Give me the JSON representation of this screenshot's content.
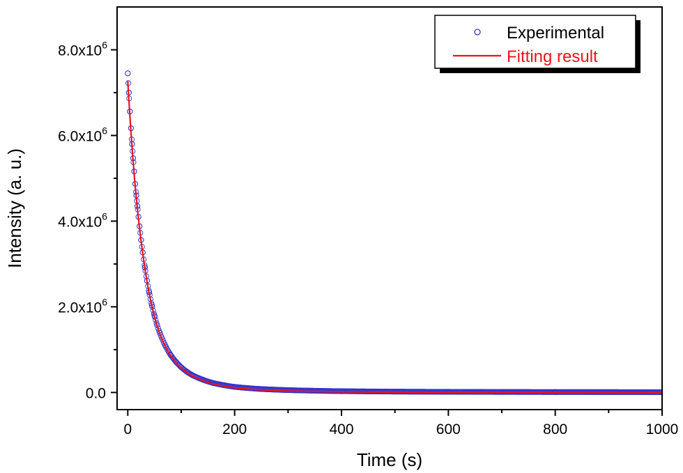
{
  "chart_data": {
    "type": "scatter",
    "title": "",
    "xlabel": "Time (s)",
    "ylabel": "Intensity (a. u.)",
    "xlim": [
      -20,
      1000
    ],
    "ylim": [
      -400000,
      9000000
    ],
    "x_ticks": [
      0,
      200,
      400,
      600,
      800,
      1000
    ],
    "x_tick_labels": [
      "0",
      "200",
      "400",
      "600",
      "800",
      "1000"
    ],
    "y_ticks": [
      0,
      2000000,
      4000000,
      6000000,
      8000000
    ],
    "y_tick_labels": [
      {
        "mantissa": "0.0",
        "exponent": ""
      },
      {
        "mantissa": "2.0x10",
        "exponent": "6"
      },
      {
        "mantissa": "4.0x10",
        "exponent": "6"
      },
      {
        "mantissa": "6.0x10",
        "exponent": "6"
      },
      {
        "mantissa": "8.0x10",
        "exponent": "6"
      }
    ],
    "grid": false,
    "legend_position": "top-right",
    "series": [
      {
        "name": "Experimental",
        "kind": "markers",
        "marker": "open-circle",
        "color": "#3333cc",
        "x": [
          0,
          2,
          4,
          6,
          8,
          10,
          12,
          14,
          16,
          18,
          20,
          22,
          25,
          28,
          32,
          36,
          40,
          45,
          50,
          55,
          60,
          70,
          80,
          90,
          100,
          110,
          120,
          140,
          160,
          180,
          200,
          250,
          300,
          400,
          500,
          600,
          700,
          800,
          900,
          1000
        ],
        "y": [
          7450000,
          7000000,
          6560000,
          6170000,
          5800000,
          5470000,
          5160000,
          4870000,
          4600000,
          4350000,
          4100000,
          3880000,
          3560000,
          3270000,
          2920000,
          2610000,
          2340000,
          2040000,
          1790000,
          1570000,
          1390000,
          1100000,
          880000,
          720000,
          590000,
          490000,
          410000,
          300000,
          220000,
          170000,
          130000,
          80000,
          55000,
          30000,
          20000,
          15000,
          12000,
          10000,
          9000,
          8000
        ]
      },
      {
        "name": "Fitting result",
        "kind": "line",
        "color": "#e8141c",
        "x": [
          0,
          2,
          4,
          6,
          8,
          10,
          12,
          14,
          16,
          18,
          20,
          22,
          25,
          28,
          32,
          36,
          40,
          45,
          50,
          55,
          60,
          70,
          80,
          90,
          100,
          110,
          120,
          140,
          160,
          180,
          200,
          250,
          300,
          400,
          500,
          600,
          700,
          800,
          900,
          1000
        ],
        "y": [
          7270000,
          6850000,
          6450000,
          6080000,
          5730000,
          5400000,
          5090000,
          4800000,
          4540000,
          4290000,
          4060000,
          3840000,
          3530000,
          3250000,
          2900000,
          2590000,
          2320000,
          2020000,
          1770000,
          1550000,
          1370000,
          1080000,
          860000,
          700000,
          570000,
          470000,
          390000,
          280000,
          200000,
          150000,
          110000,
          60000,
          35000,
          15000,
          8000,
          5000,
          3000,
          2000,
          1500,
          1000
        ]
      }
    ]
  }
}
